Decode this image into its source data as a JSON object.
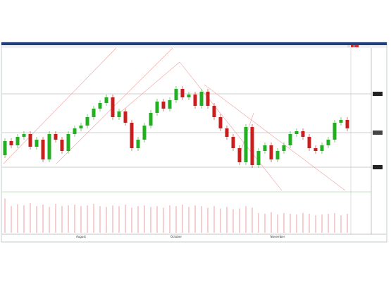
{
  "chart_data": {
    "type": "candlestick",
    "categories": [
      null,
      null,
      null,
      null,
      null,
      null,
      null,
      null,
      null,
      null,
      null,
      null,
      "August",
      null,
      null,
      null,
      null,
      null,
      null,
      null,
      null,
      null,
      null,
      null,
      null,
      null,
      null,
      "October",
      null,
      null,
      null,
      null,
      null,
      null,
      null,
      null,
      null,
      null,
      null,
      null,
      null,
      null,
      null,
      "November",
      null,
      null,
      null,
      null,
      null,
      null,
      null,
      null,
      null,
      null,
      null
    ],
    "open": [
      25,
      35,
      32,
      38,
      40,
      31,
      36,
      22,
      40,
      36,
      28,
      40,
      44,
      46,
      52,
      58,
      62,
      66,
      52,
      56,
      48,
      30,
      36,
      46,
      55,
      63,
      58,
      64,
      72,
      66,
      68,
      60,
      70,
      60,
      52,
      44,
      38,
      30,
      20,
      45,
      18,
      28,
      32,
      22,
      28,
      32,
      40,
      42,
      38,
      30,
      28,
      32,
      36,
      48,
      50
    ],
    "high": [
      37,
      37,
      40,
      42,
      42,
      38,
      38,
      42,
      42,
      38,
      42,
      46,
      48,
      54,
      60,
      64,
      68,
      68,
      58,
      58,
      50,
      38,
      48,
      57,
      65,
      65,
      66,
      74,
      74,
      70,
      70,
      72,
      72,
      62,
      54,
      46,
      40,
      32,
      47,
      47,
      30,
      34,
      34,
      30,
      34,
      42,
      44,
      44,
      40,
      32,
      34,
      38,
      50,
      52,
      52
    ],
    "low": [
      23,
      30,
      30,
      36,
      29,
      29,
      20,
      20,
      34,
      26,
      26,
      38,
      42,
      44,
      50,
      56,
      60,
      50,
      50,
      46,
      28,
      28,
      34,
      44,
      53,
      56,
      56,
      62,
      64,
      64,
      58,
      58,
      58,
      50,
      42,
      36,
      28,
      18,
      18,
      16,
      16,
      26,
      20,
      20,
      26,
      30,
      38,
      36,
      28,
      26,
      26,
      30,
      34,
      46,
      42
    ],
    "close": [
      35,
      32,
      38,
      40,
      31,
      36,
      22,
      40,
      36,
      28,
      40,
      44,
      46,
      52,
      58,
      62,
      66,
      52,
      56,
      48,
      30,
      36,
      46,
      55,
      63,
      58,
      64,
      72,
      66,
      68,
      60,
      70,
      60,
      52,
      44,
      38,
      30,
      20,
      45,
      18,
      28,
      32,
      22,
      28,
      32,
      40,
      42,
      38,
      30,
      28,
      32,
      36,
      48,
      50,
      44
    ],
    "volume": [
      90,
      70,
      75,
      72,
      78,
      70,
      74,
      68,
      76,
      70,
      72,
      74,
      70,
      72,
      76,
      70,
      68,
      72,
      70,
      74,
      66,
      70,
      72,
      68,
      70,
      66,
      72,
      70,
      74,
      68,
      72,
      70,
      66,
      70,
      64,
      68,
      62,
      64,
      70,
      66,
      52,
      50,
      54,
      48,
      52,
      50,
      48,
      52,
      50,
      46,
      48,
      50,
      52,
      46,
      50
    ],
    "ylim": [
      0,
      100
    ],
    "volume_ylim": [
      0,
      100
    ],
    "up_color": "#22b022",
    "down_color": "#c81e1e",
    "volume_color": "#e88a8a"
  }
}
